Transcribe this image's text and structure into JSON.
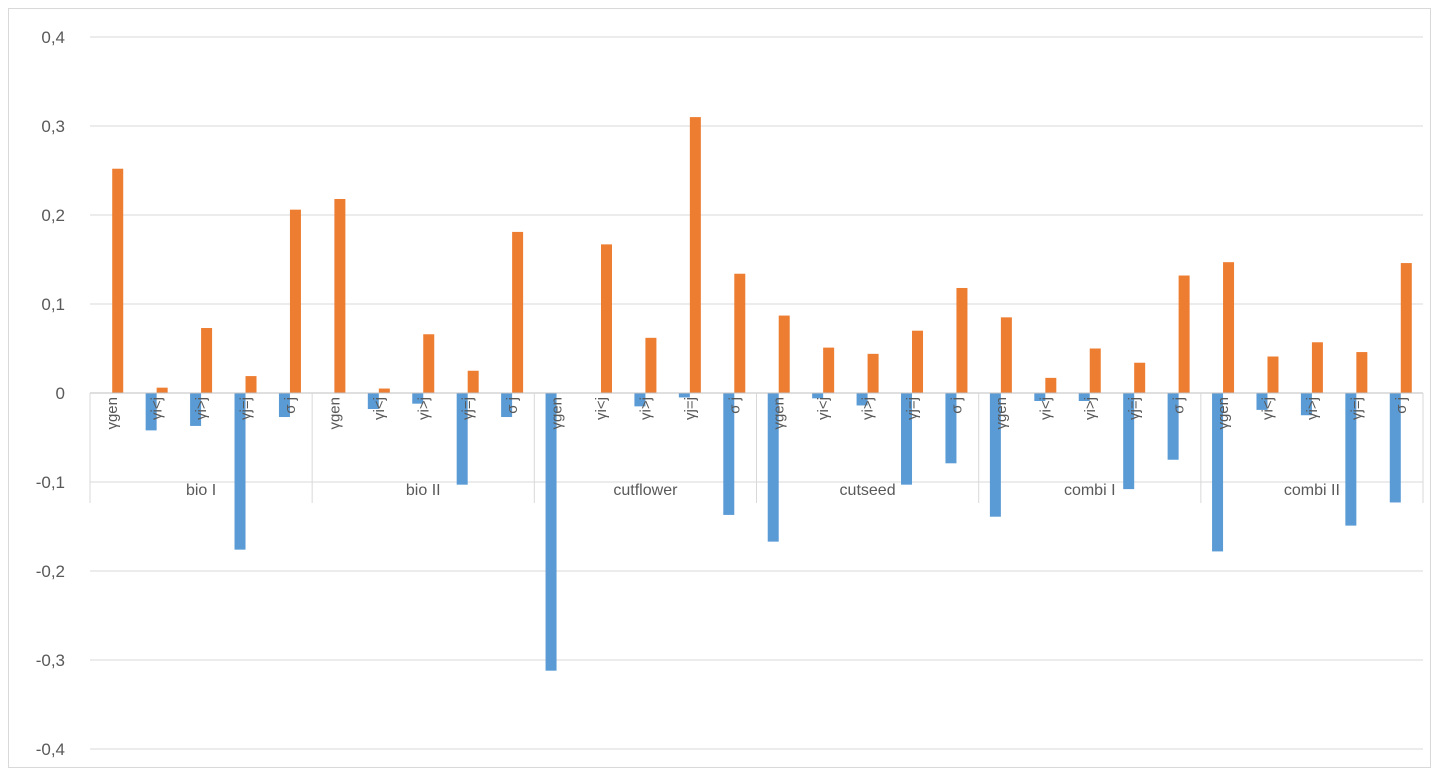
{
  "chart_data": {
    "type": "bar",
    "ylim": [
      -0.4,
      0.4
    ],
    "yticks": [
      0.4,
      0.3,
      0.2,
      0.1,
      0,
      -0.1,
      -0.2,
      -0.3,
      -0.4
    ],
    "ytick_labels": [
      "0,4",
      "0,3",
      "0,2",
      "0,1",
      "0",
      "-0,1",
      "-0,2",
      "-0,3",
      "-0,4"
    ],
    "grid": true,
    "legend": "none",
    "groups": [
      "bio I",
      "bio II",
      "cutflower",
      "cutseed",
      "combi I",
      "combi II"
    ],
    "subcategories": [
      "γgen",
      "γi<j",
      "γi>j",
      "γj=j",
      "σ j"
    ],
    "series": [
      {
        "color": "#5b9bd5",
        "values": [
          [
            0,
            -0.042,
            -0.037,
            -0.176,
            -0.027
          ],
          [
            0,
            -0.018,
            -0.012,
            -0.103,
            -0.027
          ],
          [
            -0.312,
            0,
            -0.015,
            -0.005,
            -0.137
          ],
          [
            -0.167,
            -0.006,
            -0.014,
            -0.103,
            -0.079
          ],
          [
            -0.139,
            -0.009,
            -0.009,
            -0.108,
            -0.075
          ],
          [
            -0.178,
            -0.019,
            -0.025,
            -0.149,
            -0.123
          ]
        ]
      },
      {
        "color": "#ed7d31",
        "values": [
          [
            0.252,
            0.006,
            0.073,
            0.019,
            0.206
          ],
          [
            0.218,
            0.005,
            0.066,
            0.025,
            0.181
          ],
          [
            0,
            0.167,
            0.062,
            0.31,
            0.134
          ],
          [
            0.087,
            0.051,
            0.044,
            0.07,
            0.118
          ],
          [
            0.085,
            0.017,
            0.05,
            0.034,
            0.132
          ],
          [
            0.147,
            0.041,
            0.057,
            0.046,
            0.146
          ]
        ]
      }
    ]
  }
}
